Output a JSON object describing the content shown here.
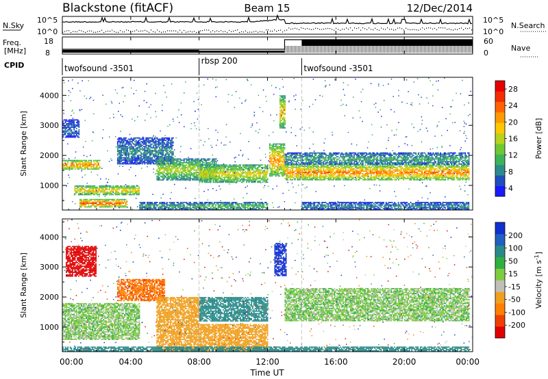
{
  "header": {
    "station": "Blackstone (fitACF)",
    "beam": "Beam 15",
    "date": "12/Dec/2014"
  },
  "noise_panel": {
    "left_label": "N.Sky",
    "right_label": "N.Search",
    "left_ticks": [
      "10^5",
      "10^0"
    ],
    "right_ticks": [
      "10^5",
      "10^0"
    ]
  },
  "freq_panel": {
    "left_label_line1": "Freq.",
    "left_label_line2": "[MHz]",
    "right_label": "Nave",
    "left_ticks": [
      "18",
      "8"
    ],
    "right_ticks": [
      "60",
      "0"
    ]
  },
  "cpid": {
    "label": "CPID",
    "segments": [
      {
        "name": "twofsound -3501",
        "start_hour": 0,
        "end_hour": 8
      },
      {
        "name": "rbsp 200",
        "start_hour": 8,
        "end_hour": 14
      },
      {
        "name": "twofsound -3501",
        "start_hour": 14,
        "end_hour": 24
      }
    ]
  },
  "x_axis": {
    "label": "Time UT",
    "tick_labels": [
      "00:00",
      "04:00",
      "08:00",
      "12:00",
      "16:00",
      "20:00",
      "00:00"
    ]
  },
  "chart_data": [
    {
      "type": "heatmap",
      "panel": "power",
      "ylabel": "Slant Range [km]",
      "y_tick_labels": [
        "1000",
        "2000",
        "3000",
        "4000"
      ],
      "xlim_hours": [
        0,
        24
      ],
      "ylim_km": [
        180,
        4600
      ],
      "colorbar": {
        "label": "Power [dB]",
        "tick_labels": [
          "4",
          "8",
          "12",
          "16",
          "20",
          "24",
          "28"
        ],
        "colors": [
          "#1a1aff",
          "#1f4fbf",
          "#2e8b8b",
          "#3cb45a",
          "#6fc832",
          "#b8d21e",
          "#ffc800",
          "#ff9a00",
          "#ff6400",
          "#f52d00",
          "#e60000"
        ]
      },
      "bands": [
        {
          "h0": 0.0,
          "h1": 2.2,
          "km0": 1550,
          "km1": 1850,
          "db": 24
        },
        {
          "h0": 0.0,
          "h1": 1.0,
          "km0": 2600,
          "km1": 3200,
          "db": 6
        },
        {
          "h0": 0.7,
          "h1": 4.5,
          "km0": 700,
          "km1": 1000,
          "db": 20
        },
        {
          "h0": 1.0,
          "h1": 3.8,
          "km0": 300,
          "km1": 550,
          "db": 26
        },
        {
          "h0": 4.5,
          "h1": 8.0,
          "km0": 200,
          "km1": 450,
          "db": 10
        },
        {
          "h0": 3.2,
          "h1": 6.5,
          "km0": 1700,
          "km1": 2600,
          "db": 8
        },
        {
          "h0": 5.5,
          "h1": 9.0,
          "km0": 1200,
          "km1": 1900,
          "db": 16
        },
        {
          "h0": 8.0,
          "h1": 12.0,
          "km0": 1100,
          "km1": 1700,
          "db": 18
        },
        {
          "h0": 8.0,
          "h1": 12.0,
          "km0": 200,
          "km1": 450,
          "db": 12
        },
        {
          "h0": 12.1,
          "h1": 13.0,
          "km0": 1300,
          "km1": 2400,
          "db": 22
        },
        {
          "h0": 12.7,
          "h1": 13.0,
          "km0": 2900,
          "km1": 4000,
          "db": 20
        },
        {
          "h0": 13.0,
          "h1": 23.8,
          "km0": 1200,
          "km1": 1700,
          "db": 24
        },
        {
          "h0": 13.0,
          "h1": 23.8,
          "km0": 1700,
          "km1": 2100,
          "db": 10
        },
        {
          "h0": 14.0,
          "h1": 23.8,
          "km0": 200,
          "km1": 450,
          "db": 8
        }
      ]
    },
    {
      "type": "heatmap",
      "panel": "velocity",
      "ylabel": "Slant Range [km]",
      "y_tick_labels": [
        "1000",
        "2000",
        "3000",
        "4000"
      ],
      "xlim_hours": [
        0,
        24
      ],
      "ylim_km": [
        180,
        4600
      ],
      "colorbar": {
        "label": "Velocity [m s^-1]",
        "tick_labels": [
          "200",
          "100",
          "50",
          "15",
          "-15",
          "-50",
          "-100",
          "-200"
        ],
        "colors": [
          "#1030d0",
          "#2060c0",
          "#2a8a8a",
          "#30b040",
          "#80cc40",
          "#c0c0b8",
          "#f0a020",
          "#ff8000",
          "#f04000",
          "#e00000"
        ]
      },
      "bands": [
        {
          "h0": 0.0,
          "h1": 4.5,
          "km0": 600,
          "km1": 1800,
          "vel": 0
        },
        {
          "h0": 0.2,
          "h1": 2.0,
          "km0": 2700,
          "km1": 3700,
          "vel": -200
        },
        {
          "h0": 3.2,
          "h1": 6.0,
          "km0": 1900,
          "km1": 2600,
          "vel": -120
        },
        {
          "h0": 5.5,
          "h1": 8.0,
          "km0": 200,
          "km1": 2000,
          "vel": -60
        },
        {
          "h0": 8.0,
          "h1": 12.0,
          "km0": 1200,
          "km1": 2000,
          "vel": 60
        },
        {
          "h0": 8.0,
          "h1": 12.0,
          "km0": 200,
          "km1": 1100,
          "vel": -60
        },
        {
          "h0": 12.4,
          "h1": 13.1,
          "km0": 2700,
          "km1": 3800,
          "vel": 200
        },
        {
          "h0": 13.0,
          "h1": 23.8,
          "km0": 1200,
          "km1": 2300,
          "vel": 0
        },
        {
          "h0": 0.0,
          "h1": 23.8,
          "km0": 200,
          "km1": 350,
          "vel": 50
        }
      ]
    }
  ]
}
